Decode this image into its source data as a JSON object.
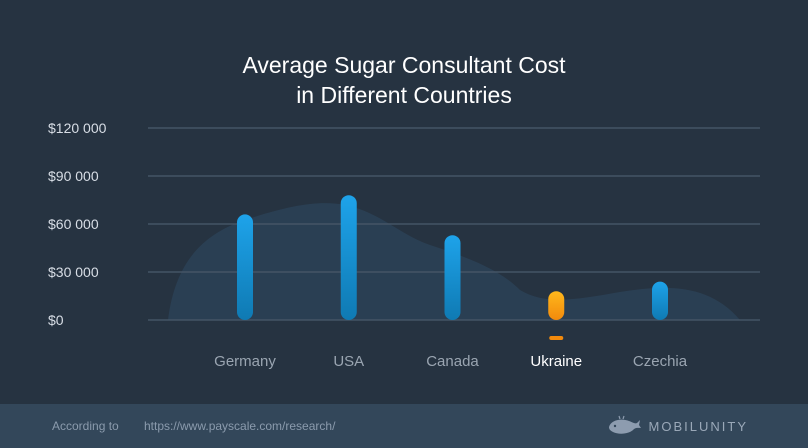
{
  "chart_data": {
    "type": "bar",
    "title_line1": "Average Sugar Consultant Cost",
    "title_line2": "in Different Countries",
    "categories": [
      "Germany",
      "USA",
      "Canada",
      "Ukraine",
      "Czechia"
    ],
    "values": [
      66000,
      78000,
      53000,
      18000,
      24000
    ],
    "highlight": "Ukraine",
    "ylim": [
      0,
      120000
    ],
    "yticks": [
      0,
      30000,
      60000,
      90000,
      120000
    ],
    "ytick_labels": [
      "$0",
      "$30 000",
      "$60 000",
      "$90 000",
      "$120 000"
    ],
    "xlabel": "",
    "ylabel": "",
    "grid": true
  },
  "colors": {
    "background": "#263341",
    "bar": "#1ea3ea",
    "bar_bottom": "#0f7ab3",
    "highlight_bar": "#ffb81c",
    "highlight_bottom": "#f28a0c",
    "grid": "#445566",
    "tick_label": "#d8dee6",
    "category_label": "#9aa5b1",
    "highlight_label": "#ffffff"
  },
  "footer": {
    "prefix": "According to",
    "source": "https://www.payscale.com/research/",
    "brand": "MOBILUNITY"
  },
  "icons": {
    "logo": "whale-icon"
  }
}
